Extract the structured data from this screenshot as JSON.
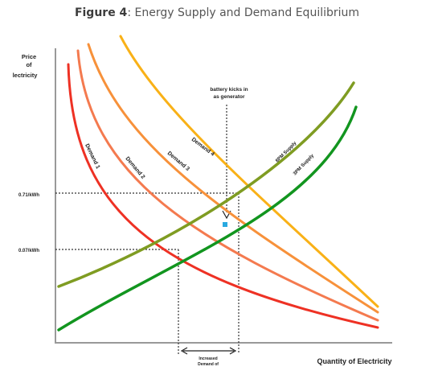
{
  "figure": {
    "label": "Figure 4",
    "title": "Energy Supply and Demand Equilibrium"
  },
  "chart_data": {
    "type": "line",
    "title": "Energy Supply and Demand Equilibrium",
    "ylabel_lines": [
      "Price",
      "of",
      "lectricity"
    ],
    "xlabel": "Quantity of Electricity",
    "price_levels": [
      {
        "label": "0.71/kWh",
        "value": 0.71
      },
      {
        "label": "0.07/kWh",
        "value": 0.07
      }
    ],
    "annotation": {
      "lines": [
        "battery kicks in",
        "as generator"
      ]
    },
    "bottom_annotation": {
      "lines": [
        "Increased",
        "Demand of"
      ]
    },
    "series": [
      {
        "name": "Demand 1",
        "kind": "demand",
        "color": "#ee3124"
      },
      {
        "name": "Demand 2",
        "kind": "demand",
        "color": "#f47a4f"
      },
      {
        "name": "Demand 3",
        "kind": "demand",
        "color": "#f7913a"
      },
      {
        "name": "Demand 4",
        "kind": "demand",
        "color": "#f9b117"
      },
      {
        "name": "8PM Supply",
        "kind": "supply",
        "color": "#7f9c22"
      },
      {
        "name": "3PM Supply",
        "kind": "supply",
        "color": "#12951f"
      }
    ],
    "equilibrium_marker_color": "#29a9e0"
  }
}
